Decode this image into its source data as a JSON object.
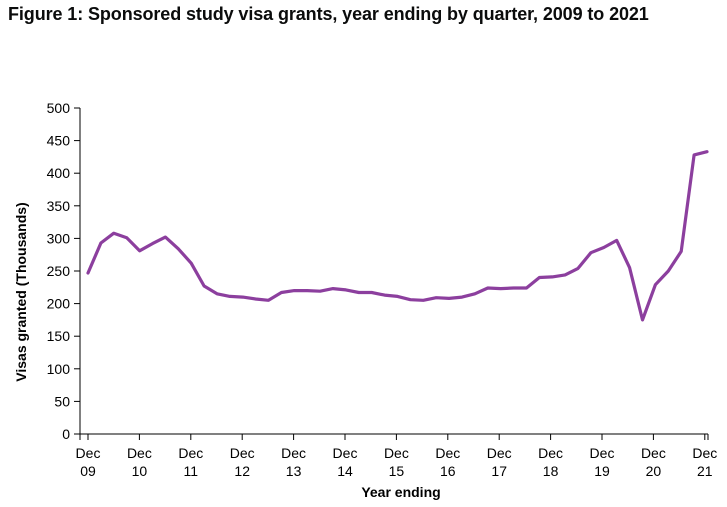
{
  "title": "Figure 1: Sponsored study visa grants, year ending by quarter, 2009 to 2021",
  "chart_data": {
    "type": "line",
    "title": "Figure 1: Sponsored study visa grants, year ending by quarter, 2009 to 2021",
    "xlabel": "Year ending",
    "ylabel": "Visas granted (Thousands)",
    "ylim": [
      0,
      500
    ],
    "yticks": [
      "0",
      "50",
      "100",
      "150",
      "200",
      "250",
      "300",
      "350",
      "400",
      "450",
      "500"
    ],
    "xtick_labels": [
      [
        "Dec",
        "09"
      ],
      [
        "Dec",
        "10"
      ],
      [
        "Dec",
        "11"
      ],
      [
        "Dec",
        "12"
      ],
      [
        "Dec",
        "13"
      ],
      [
        "Dec",
        "14"
      ],
      [
        "Dec",
        "15"
      ],
      [
        "Dec",
        "16"
      ],
      [
        "Dec",
        "17"
      ],
      [
        "Dec",
        "18"
      ],
      [
        "Dec",
        "19"
      ],
      [
        "Dec",
        "20"
      ],
      [
        "Dec",
        "21"
      ]
    ],
    "line_color": "#8c3f9e",
    "series": [
      {
        "name": "Sponsored study visa grants",
        "values": [
          247,
          293,
          308,
          301,
          281,
          292,
          302,
          284,
          262,
          227,
          215,
          211,
          210,
          207,
          205,
          217,
          220,
          220,
          219,
          223,
          221,
          217,
          217,
          213,
          211,
          206,
          205,
          209,
          208,
          210,
          215,
          224,
          223,
          224,
          224,
          240,
          241,
          244,
          254,
          278,
          286,
          297,
          255,
          175,
          229,
          250,
          280,
          428,
          433
        ]
      }
    ]
  }
}
